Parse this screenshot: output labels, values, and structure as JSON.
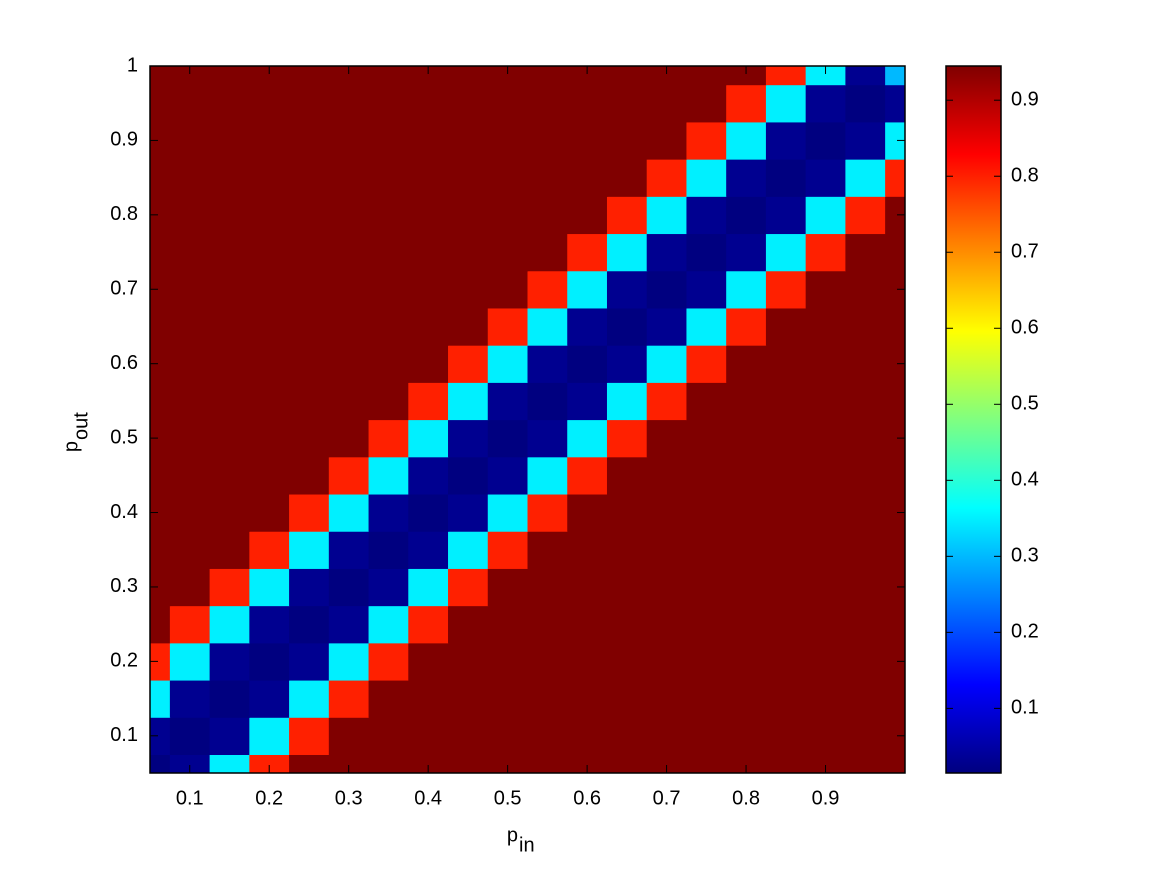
{
  "chart_data": {
    "type": "contour",
    "xlabel": "p",
    "xlabel_sub": "in",
    "ylabel": "p",
    "ylabel_sub": "out",
    "x": [
      0.05,
      0.1,
      0.15,
      0.2,
      0.25,
      0.3,
      0.35,
      0.4,
      0.45,
      0.5,
      0.55,
      0.6,
      0.65,
      0.7,
      0.75,
      0.8,
      0.85,
      0.9,
      0.95,
      1.0
    ],
    "y": [
      0.05,
      0.1,
      0.15,
      0.2,
      0.25,
      0.3,
      0.35,
      0.4,
      0.45,
      0.5,
      0.55,
      0.6,
      0.65,
      0.7,
      0.75,
      0.8,
      0.85,
      0.9,
      0.95,
      1.0
    ],
    "z": [
      [
        0.01,
        0.03,
        0.35,
        0.8,
        0.95,
        0.95,
        0.95,
        0.95,
        0.95,
        0.95,
        0.95,
        0.95,
        0.95,
        0.95,
        0.95,
        0.95,
        0.95,
        0.95,
        0.95,
        0.95
      ],
      [
        0.03,
        0.01,
        0.03,
        0.35,
        0.8,
        0.95,
        0.95,
        0.95,
        0.95,
        0.95,
        0.95,
        0.95,
        0.95,
        0.95,
        0.95,
        0.95,
        0.95,
        0.95,
        0.95,
        0.95
      ],
      [
        0.35,
        0.03,
        0.01,
        0.03,
        0.35,
        0.8,
        0.95,
        0.95,
        0.95,
        0.95,
        0.95,
        0.95,
        0.95,
        0.95,
        0.95,
        0.95,
        0.95,
        0.95,
        0.95,
        0.95
      ],
      [
        0.8,
        0.35,
        0.03,
        0.01,
        0.03,
        0.35,
        0.8,
        0.95,
        0.95,
        0.95,
        0.95,
        0.95,
        0.95,
        0.95,
        0.95,
        0.95,
        0.95,
        0.95,
        0.95,
        0.95
      ],
      [
        0.95,
        0.8,
        0.35,
        0.03,
        0.01,
        0.03,
        0.35,
        0.8,
        0.95,
        0.95,
        0.95,
        0.95,
        0.95,
        0.95,
        0.95,
        0.95,
        0.95,
        0.95,
        0.95,
        0.95
      ],
      [
        0.95,
        0.95,
        0.8,
        0.35,
        0.03,
        0.01,
        0.03,
        0.35,
        0.8,
        0.95,
        0.95,
        0.95,
        0.95,
        0.95,
        0.95,
        0.95,
        0.95,
        0.95,
        0.95,
        0.95
      ],
      [
        0.95,
        0.95,
        0.95,
        0.8,
        0.35,
        0.03,
        0.01,
        0.03,
        0.35,
        0.8,
        0.95,
        0.95,
        0.95,
        0.95,
        0.95,
        0.95,
        0.95,
        0.95,
        0.95,
        0.95
      ],
      [
        0.95,
        0.95,
        0.95,
        0.95,
        0.8,
        0.35,
        0.03,
        0.01,
        0.03,
        0.35,
        0.8,
        0.95,
        0.95,
        0.95,
        0.95,
        0.95,
        0.95,
        0.95,
        0.95,
        0.95
      ],
      [
        0.95,
        0.95,
        0.95,
        0.95,
        0.95,
        0.8,
        0.35,
        0.03,
        0.01,
        0.03,
        0.35,
        0.8,
        0.95,
        0.95,
        0.95,
        0.95,
        0.95,
        0.95,
        0.95,
        0.95
      ],
      [
        0.95,
        0.95,
        0.95,
        0.95,
        0.95,
        0.95,
        0.8,
        0.35,
        0.03,
        0.01,
        0.03,
        0.35,
        0.8,
        0.95,
        0.95,
        0.95,
        0.95,
        0.95,
        0.95,
        0.95
      ],
      [
        0.95,
        0.95,
        0.95,
        0.95,
        0.95,
        0.95,
        0.95,
        0.8,
        0.35,
        0.03,
        0.01,
        0.03,
        0.35,
        0.8,
        0.95,
        0.95,
        0.95,
        0.95,
        0.95,
        0.95
      ],
      [
        0.95,
        0.95,
        0.95,
        0.95,
        0.95,
        0.95,
        0.95,
        0.95,
        0.8,
        0.35,
        0.03,
        0.01,
        0.03,
        0.35,
        0.8,
        0.95,
        0.95,
        0.95,
        0.95,
        0.95
      ],
      [
        0.95,
        0.95,
        0.95,
        0.95,
        0.95,
        0.95,
        0.95,
        0.95,
        0.95,
        0.8,
        0.35,
        0.03,
        0.01,
        0.03,
        0.35,
        0.8,
        0.95,
        0.95,
        0.95,
        0.95
      ],
      [
        0.95,
        0.95,
        0.95,
        0.95,
        0.95,
        0.95,
        0.95,
        0.95,
        0.95,
        0.95,
        0.8,
        0.35,
        0.03,
        0.01,
        0.03,
        0.35,
        0.8,
        0.95,
        0.95,
        0.95
      ],
      [
        0.95,
        0.95,
        0.95,
        0.95,
        0.95,
        0.95,
        0.95,
        0.95,
        0.95,
        0.95,
        0.95,
        0.8,
        0.35,
        0.03,
        0.01,
        0.03,
        0.35,
        0.8,
        0.95,
        0.95
      ],
      [
        0.95,
        0.95,
        0.95,
        0.95,
        0.95,
        0.95,
        0.95,
        0.95,
        0.95,
        0.95,
        0.95,
        0.95,
        0.8,
        0.35,
        0.03,
        0.01,
        0.03,
        0.35,
        0.8,
        0.95
      ],
      [
        0.95,
        0.95,
        0.95,
        0.95,
        0.95,
        0.95,
        0.95,
        0.95,
        0.95,
        0.95,
        0.95,
        0.95,
        0.95,
        0.8,
        0.35,
        0.03,
        0.01,
        0.03,
        0.35,
        0.8
      ],
      [
        0.95,
        0.95,
        0.95,
        0.95,
        0.95,
        0.95,
        0.95,
        0.95,
        0.95,
        0.95,
        0.95,
        0.95,
        0.95,
        0.95,
        0.8,
        0.35,
        0.03,
        0.01,
        0.03,
        0.35
      ],
      [
        0.95,
        0.95,
        0.95,
        0.95,
        0.95,
        0.95,
        0.95,
        0.95,
        0.95,
        0.95,
        0.95,
        0.95,
        0.95,
        0.95,
        0.95,
        0.8,
        0.35,
        0.03,
        0.01,
        0.03
      ],
      [
        0.95,
        0.95,
        0.95,
        0.95,
        0.95,
        0.95,
        0.95,
        0.95,
        0.95,
        0.95,
        0.95,
        0.95,
        0.95,
        0.95,
        0.95,
        0.95,
        0.8,
        0.35,
        0.03,
        0.3
      ]
    ],
    "colormap": "jet",
    "clim": [
      0.015,
      0.945
    ],
    "xlim": [
      0.05,
      1
    ],
    "ylim": [
      0.05,
      1
    ],
    "xticks": [
      0.1,
      0.2,
      0.3,
      0.4,
      0.5,
      0.6,
      0.7,
      0.8,
      0.9
    ],
    "yticks": [
      0.1,
      0.2,
      0.3,
      0.4,
      0.5,
      0.6,
      0.7,
      0.8,
      0.9,
      1
    ],
    "colorbar_ticks": [
      0.1,
      0.2,
      0.3,
      0.4,
      0.5,
      0.6,
      0.7,
      0.8,
      0.9
    ]
  }
}
